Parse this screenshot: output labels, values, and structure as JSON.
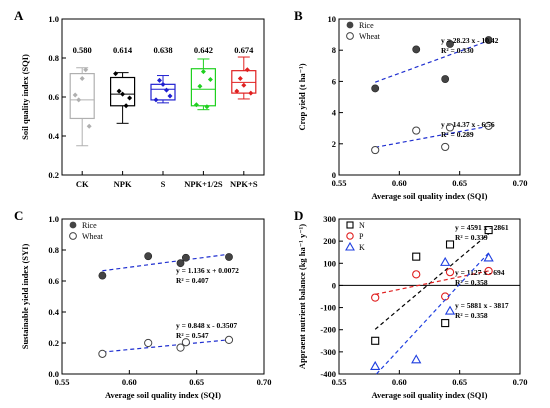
{
  "chart_data": [
    {
      "panel": "A",
      "type": "box",
      "ylabel": "Soil quality index (SQI)",
      "ylim": [
        0.2,
        1.0
      ],
      "yticks": [
        "0.2",
        "0.4",
        "0.6",
        "0.8",
        "1.0"
      ],
      "categories": [
        "CK",
        "NPK",
        "S",
        "NPK+1/2S",
        "NPK+S"
      ],
      "colors": [
        "#b0b0b0",
        "#000000",
        "#1f1fd0",
        "#1fd01f",
        "#e02020"
      ],
      "mean_labels": [
        "0.580",
        "0.614",
        "0.638",
        "0.642",
        "0.674"
      ],
      "boxes": [
        {
          "min": 0.35,
          "q1": 0.49,
          "median": 0.585,
          "q3": 0.72,
          "max": 0.75
        },
        {
          "min": 0.465,
          "q1": 0.555,
          "median": 0.615,
          "q3": 0.7,
          "max": 0.725
        },
        {
          "min": 0.57,
          "q1": 0.585,
          "median": 0.64,
          "q3": 0.665,
          "max": 0.71
        },
        {
          "min": 0.535,
          "q1": 0.555,
          "median": 0.64,
          "q3": 0.745,
          "max": 0.795
        },
        {
          "min": 0.59,
          "q1": 0.62,
          "median": 0.675,
          "q3": 0.735,
          "max": 0.805
        }
      ],
      "points": [
        [
          0.61,
          0.585,
          0.695,
          0.74,
          0.45
        ],
        [
          0.72,
          0.63,
          0.615,
          0.555,
          0.595
        ],
        [
          0.585,
          0.685,
          0.665,
          0.635,
          0.605
        ],
        [
          0.56,
          0.655,
          0.73,
          0.55,
          0.69
        ],
        [
          0.63,
          0.695,
          0.66,
          0.74,
          0.62
        ]
      ],
      "mean": [
        0.58,
        0.614,
        0.638,
        0.642,
        0.674
      ]
    },
    {
      "panel": "B",
      "type": "scatter",
      "xlabel": "Average soil quality index (SQI)",
      "ylabel": "Crop yield (t ha⁻¹)",
      "xlim": [
        0.55,
        0.7
      ],
      "ylim": [
        0,
        10
      ],
      "xticks": [
        "0.55",
        "0.60",
        "0.65",
        "0.70"
      ],
      "yticks": [
        "0",
        "2",
        "4",
        "6",
        "8",
        "10"
      ],
      "series": [
        {
          "name": "Rice",
          "marker": "filled",
          "x": [
            0.58,
            0.614,
            0.638,
            0.642,
            0.674
          ],
          "y": [
            5.55,
            8.05,
            6.15,
            8.4,
            8.65
          ],
          "fit": {
            "slope": 28.23,
            "intercept": -10.42
          },
          "equation": "y = 28.23 x - 10.42",
          "r2": "R² = 0.330"
        },
        {
          "name": "Wheat",
          "marker": "open",
          "x": [
            0.58,
            0.614,
            0.638,
            0.642,
            0.674
          ],
          "y": [
            1.6,
            2.85,
            1.8,
            3.05,
            3.15
          ],
          "fit": {
            "slope": 14.37,
            "intercept": -6.56
          },
          "equation": "y = 14.37 x - 6.56",
          "r2": "R² = 0.289"
        }
      ]
    },
    {
      "panel": "C",
      "type": "scatter",
      "xlabel": "Average soil quality index (SQI)",
      "ylabel": "Sustainable yield index (SYI)",
      "xlim": [
        0.55,
        0.7
      ],
      "ylim": [
        0,
        1.0
      ],
      "xticks": [
        "0.55",
        "0.60",
        "0.65",
        "0.70"
      ],
      "yticks": [
        "0.0",
        "0.2",
        "0.4",
        "0.6",
        "0.8",
        "1.0"
      ],
      "series": [
        {
          "name": "Rice",
          "marker": "filled",
          "x": [
            0.58,
            0.614,
            0.638,
            0.642,
            0.674
          ],
          "y": [
            0.635,
            0.76,
            0.715,
            0.75,
            0.755
          ],
          "fit": {
            "slope": 1.136,
            "intercept": 0.0072
          },
          "equation": "y = 1.136 x + 0.0072",
          "r2": "R² = 0.407"
        },
        {
          "name": "Wheat",
          "marker": "open",
          "x": [
            0.58,
            0.614,
            0.638,
            0.642,
            0.674
          ],
          "y": [
            0.13,
            0.2,
            0.17,
            0.205,
            0.22
          ],
          "fit": {
            "slope": 0.848,
            "intercept": -0.3507
          },
          "equation": "y = 0.848 x - 0.3507",
          "r2": "R² = 0.547"
        }
      ]
    },
    {
      "panel": "D",
      "type": "scatter",
      "xlabel": "Average soil quality index (SQI)",
      "ylabel": "Appraent nutrient balance (kg ha⁻¹ y⁻¹)",
      "xlim": [
        0.55,
        0.7
      ],
      "ylim": [
        -400,
        300
      ],
      "xticks": [
        "0.55",
        "0.60",
        "0.65",
        "0.70"
      ],
      "yticks": [
        "-400",
        "-300",
        "-200",
        "-100",
        "0",
        "100",
        "200",
        "300"
      ],
      "series": [
        {
          "name": "N",
          "marker": "square",
          "color": "#000000",
          "x": [
            0.58,
            0.614,
            0.638,
            0.642,
            0.674
          ],
          "y": [
            -250,
            130,
            -170,
            185,
            250
          ],
          "fit": {
            "slope": 4591,
            "intercept": -2861
          },
          "equation": "y = 4591 x - 2861",
          "r2": "R² = 0.339"
        },
        {
          "name": "P",
          "marker": "circle",
          "color": "#e02020",
          "x": [
            0.58,
            0.614,
            0.638,
            0.642,
            0.674
          ],
          "y": [
            -55,
            50,
            -50,
            60,
            65
          ],
          "fit": {
            "slope": 1127,
            "intercept": -694
          },
          "equation": "y = 1127 x - 694",
          "r2": "R² = 0.358"
        },
        {
          "name": "K",
          "marker": "triangle",
          "color": "#1f3fe0",
          "x": [
            0.58,
            0.614,
            0.638,
            0.642,
            0.674
          ],
          "y": [
            -365,
            -335,
            105,
            -115,
            125
          ],
          "fit": {
            "slope": 5881,
            "intercept": -3817
          },
          "equation": "y = 5881 x - 3817",
          "r2": "R² = 0.358"
        }
      ]
    }
  ]
}
